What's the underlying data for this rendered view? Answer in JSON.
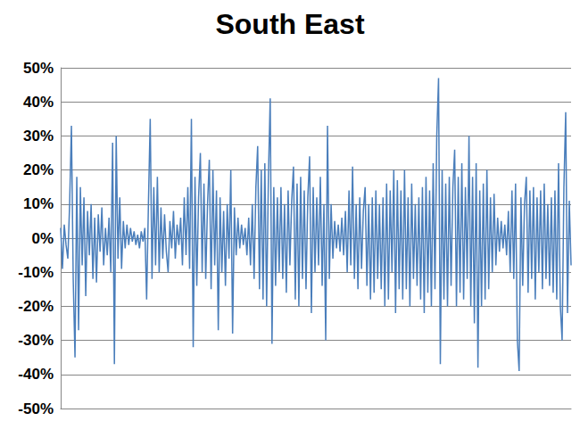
{
  "chart_data": {
    "type": "line",
    "title": "South East",
    "categories": [
      null,
      null,
      null,
      null,
      null,
      null,
      null,
      null,
      null,
      null,
      null,
      null,
      null,
      null,
      null,
      null,
      null,
      null,
      null,
      null,
      null,
      null,
      null,
      null,
      null,
      null,
      null,
      null,
      null,
      null,
      null,
      null,
      null,
      null,
      null,
      null,
      null,
      null,
      null,
      null,
      null,
      null,
      null,
      null,
      null,
      null,
      null,
      null,
      null,
      null,
      null,
      null,
      null,
      null,
      null,
      null,
      null,
      null,
      null,
      null,
      null,
      null,
      null,
      null,
      null,
      null,
      null,
      null,
      null,
      null,
      null,
      null,
      null,
      null,
      null,
      null,
      null,
      null,
      null,
      null,
      null,
      null,
      null,
      null,
      null,
      null,
      null,
      null,
      null,
      null,
      null,
      null,
      null,
      null,
      null,
      null,
      null,
      null,
      null,
      null,
      null,
      null,
      null,
      null,
      null,
      null,
      null,
      null,
      null,
      null,
      null,
      null,
      null,
      null,
      null,
      null,
      null,
      null,
      null,
      null,
      null,
      null,
      null,
      null,
      null,
      null,
      null,
      null,
      null,
      null,
      null,
      null,
      null,
      null,
      null,
      null,
      null,
      null,
      null,
      null,
      null,
      null,
      null,
      null,
      null,
      null,
      null,
      null,
      null,
      null,
      null,
      null,
      null,
      null,
      null,
      null,
      null,
      null,
      null,
      null,
      null,
      null,
      null,
      null,
      null,
      null,
      null,
      null,
      null,
      null,
      null,
      null,
      null,
      null,
      null,
      null,
      null,
      null,
      null,
      null,
      null,
      null,
      null,
      null,
      null,
      null,
      null,
      null,
      null,
      null,
      null,
      null,
      null,
      null,
      null,
      null,
      null,
      null,
      null,
      null,
      null,
      null,
      null,
      null,
      null,
      null,
      null,
      null,
      null,
      null,
      null,
      null,
      null,
      null,
      null,
      null,
      null,
      null,
      null,
      null,
      null,
      null,
      null,
      null,
      null,
      null,
      null,
      null,
      null,
      null,
      null,
      null,
      null,
      null,
      null,
      null,
      null,
      null,
      null,
      null,
      null,
      null,
      null,
      null,
      null,
      null,
      null,
      null,
      null,
      null,
      null,
      null,
      null,
      null,
      null,
      null,
      null,
      null,
      null,
      null,
      null,
      null,
      null,
      null,
      null,
      null,
      null,
      null,
      null,
      null,
      null,
      null,
      null,
      null,
      null,
      null,
      null,
      null,
      null,
      null,
      null,
      null,
      null,
      null,
      null,
      null
    ],
    "values": [
      3,
      -9,
      4,
      -2,
      -6,
      10,
      33,
      -12,
      -35,
      18,
      -27,
      15,
      -8,
      12,
      -17,
      8,
      -5,
      10,
      -12,
      6,
      -13,
      7,
      -4,
      9,
      -8,
      3,
      -5,
      6,
      -10,
      28,
      -37,
      30,
      -6,
      12,
      -9,
      5,
      -3,
      4,
      -2,
      3,
      -1,
      2,
      -2,
      1,
      -3,
      2,
      -1,
      3,
      -18,
      10,
      35,
      -12,
      15,
      -8,
      18,
      -10,
      9,
      -6,
      7,
      -4,
      -10,
      5,
      -3,
      8,
      -6,
      4,
      -2,
      6,
      -8,
      12,
      -5,
      15,
      -9,
      35,
      -32,
      18,
      -14,
      12,
      25,
      -10,
      16,
      -12,
      10,
      23,
      -15,
      20,
      -8,
      14,
      -27,
      12,
      -10,
      8,
      -14,
      10,
      -6,
      20,
      -28,
      9,
      -5,
      6,
      -3,
      4,
      -2,
      3,
      -5,
      6,
      -8,
      10,
      -12,
      15,
      27,
      -15,
      20,
      -18,
      22,
      -20,
      18,
      41,
      -31,
      15,
      -14,
      12,
      -10,
      15,
      -12,
      10,
      -16,
      14,
      -8,
      11,
      21,
      -18,
      16,
      -20,
      18,
      -12,
      14,
      -15,
      12,
      24,
      -22,
      15,
      -10,
      12,
      -8,
      18,
      -14,
      10,
      -30,
      33,
      -12,
      10,
      -6,
      5,
      -3,
      4,
      -4,
      6,
      -5,
      8,
      -10,
      14,
      -8,
      21,
      -12,
      10,
      -15,
      12,
      -9,
      8,
      15,
      -14,
      10,
      -18,
      12,
      -16,
      14,
      -12,
      10,
      -15,
      12,
      -20,
      16,
      -18,
      14,
      -10,
      20,
      -22,
      17,
      -15,
      14,
      -18,
      20,
      -15,
      12,
      -20,
      16,
      -12,
      10,
      -14,
      12,
      -18,
      15,
      -22,
      18,
      -16,
      14,
      -20,
      22,
      -15,
      30,
      47,
      -37,
      20,
      -18,
      16,
      -20,
      18,
      -14,
      15,
      26,
      -20,
      18,
      -16,
      22,
      -18,
      15,
      -12,
      30,
      -20,
      18,
      -25,
      22,
      -38,
      14,
      -20,
      16,
      -18,
      20,
      -15,
      12,
      -10,
      13,
      -8,
      6,
      -4,
      5,
      -3,
      4,
      -5,
      8,
      -10,
      14,
      -12,
      16,
      -30,
      -39,
      12,
      -14,
      10,
      18,
      -16,
      14,
      -12,
      15,
      -18,
      12,
      -10,
      14,
      -15,
      16,
      -12,
      10,
      -14,
      12,
      -16,
      14,
      -18,
      22,
      -20,
      -30,
      15,
      37,
      -22,
      11,
      -8
    ],
    "color": "#4a7ebb",
    "ylim": [
      -50,
      50
    ],
    "yticks": [
      {
        "value": -50,
        "label": "-50%"
      },
      {
        "value": -40,
        "label": "-40%"
      },
      {
        "value": -30,
        "label": "-30%"
      },
      {
        "value": -20,
        "label": "-20%"
      },
      {
        "value": -10,
        "label": "-10%"
      },
      {
        "value": 0,
        "label": "0%"
      },
      {
        "value": 10,
        "label": "10%"
      },
      {
        "value": 20,
        "label": "20%"
      },
      {
        "value": 30,
        "label": "30%"
      },
      {
        "value": 40,
        "label": "40%"
      },
      {
        "value": 50,
        "label": "50%"
      }
    ],
    "grid": true,
    "tick_labels": "y"
  }
}
